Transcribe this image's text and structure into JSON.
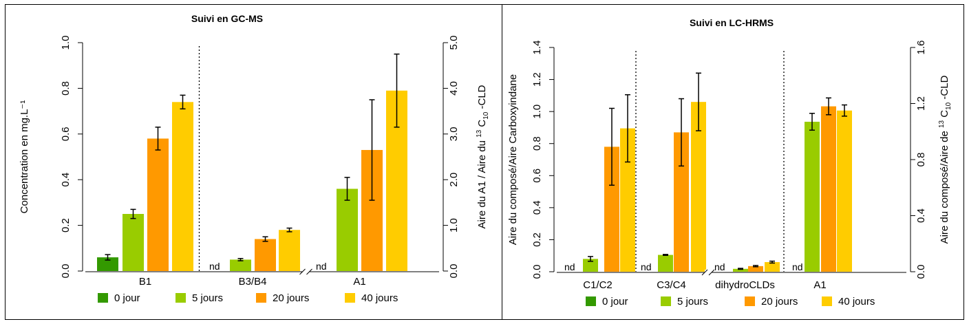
{
  "legend_labels": [
    "0 jour",
    "5 jours",
    "20 jours",
    "40 jours"
  ],
  "colors": {
    "series": [
      "#339900",
      "#99cc00",
      "#ff9900",
      "#ffcc00"
    ],
    "nd": "#339900",
    "axis": "#000000"
  },
  "chart_data": [
    {
      "type": "bar",
      "title": "Suivi en GC-MS",
      "ylabel": "Concentration en mg.L⁻¹",
      "y2label_parts": [
        "Aire du A1 / Aire du ",
        "13",
        " C",
        "10",
        " -CLD"
      ],
      "categories": [
        "B1",
        "B3/B4",
        "A1"
      ],
      "ylim": [
        0,
        1.0
      ],
      "yticks": [
        "0.0",
        "0.2",
        "0.4",
        "0.6",
        "0.8",
        "1.0"
      ],
      "ytick_values": [
        0,
        0.2,
        0.4,
        0.6,
        0.8,
        1.0
      ],
      "y2lim": [
        0,
        5.0
      ],
      "y2ticks": [
        "0.0",
        "1.0",
        "2.0",
        "3.0",
        "4.0",
        "5.0"
      ],
      "y2tick_values": [
        0,
        1,
        2,
        3,
        4,
        5
      ],
      "secondary_axis_groups": [
        2
      ],
      "separators_after": [
        0
      ],
      "axis_breaks_after": [
        1
      ],
      "nd_label": "nd",
      "series": [
        {
          "name": "0 jour",
          "values": [
            0.06,
            null,
            null
          ],
          "errors": [
            0.012,
            null,
            null
          ]
        },
        {
          "name": "5 jours",
          "values": [
            0.25,
            0.05,
            1.8
          ],
          "errors": [
            0.02,
            0.005,
            0.25
          ]
        },
        {
          "name": "20 jours",
          "values": [
            0.58,
            0.14,
            2.65
          ],
          "errors": [
            0.05,
            0.01,
            1.1
          ]
        },
        {
          "name": "40 jours",
          "values": [
            0.74,
            0.18,
            3.95
          ],
          "errors": [
            0.03,
            0.008,
            0.8
          ]
        }
      ]
    },
    {
      "type": "bar",
      "title": "Suivi en LC-HRMS",
      "ylabel": "Aire du composé/Aire Carboxyindane",
      "y2label_parts": [
        "Aire du composé/Aire de ",
        "13",
        " C",
        "10",
        " -CLD"
      ],
      "categories": [
        "C1/C2",
        "C3/C4",
        "dihydroCLDs",
        "A1"
      ],
      "ylim": [
        0,
        1.4
      ],
      "yticks": [
        "0.0",
        "0.2",
        "0.4",
        "0.6",
        "0.8",
        "1.0",
        "1.2",
        "1.4"
      ],
      "ytick_values": [
        0,
        0.2,
        0.4,
        0.6,
        0.8,
        1.0,
        1.2,
        1.4
      ],
      "y2lim": [
        0,
        1.6
      ],
      "y2ticks": [
        "0.0",
        "0.4",
        "0.8",
        "1.2",
        "1.6"
      ],
      "y2tick_values": [
        0,
        0.4,
        0.8,
        1.2,
        1.6
      ],
      "secondary_axis_groups": [
        3
      ],
      "separators_after": [
        0,
        2
      ],
      "axis_breaks_after": [
        1
      ],
      "nd_label": "nd",
      "series": [
        {
          "name": "0 jour",
          "values": [
            null,
            null,
            null,
            null
          ],
          "errors": [
            null,
            null,
            null,
            null
          ]
        },
        {
          "name": "5 jours",
          "values": [
            0.08,
            0.105,
            0.018,
            1.07
          ],
          "errors": [
            0.015,
            0.003,
            0.003,
            0.06
          ]
        },
        {
          "name": "20 jours",
          "values": [
            0.78,
            0.87,
            0.035,
            1.18
          ],
          "errors": [
            0.24,
            0.21,
            0.004,
            0.06
          ]
        },
        {
          "name": "40 jours",
          "values": [
            0.895,
            1.06,
            0.06,
            1.15
          ],
          "errors": [
            0.21,
            0.18,
            0.006,
            0.04
          ]
        }
      ]
    }
  ]
}
